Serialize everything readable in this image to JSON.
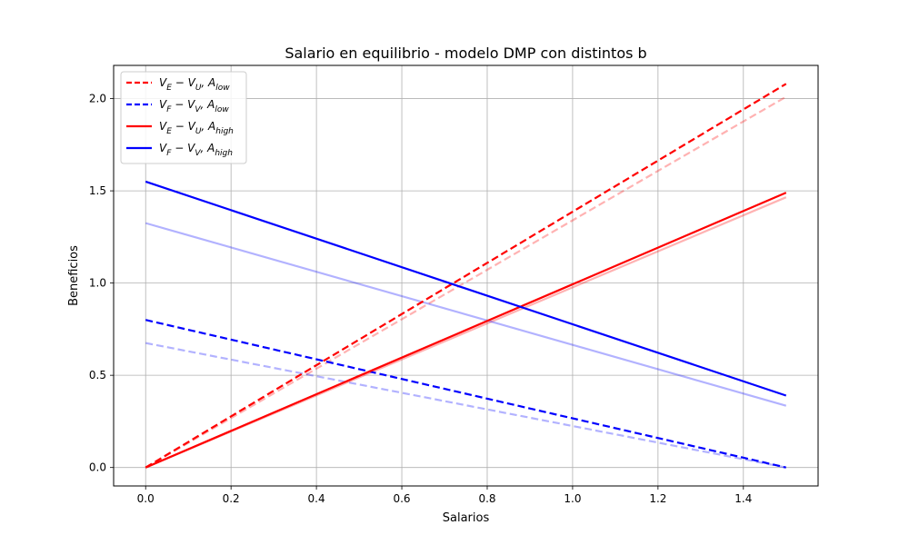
{
  "chart_data": {
    "type": "line",
    "title": "Salario en equilibrio - modelo DMP con distintos b",
    "xlabel": "Salarios",
    "ylabel": "Beneficios",
    "xlim": [
      -0.075,
      1.575
    ],
    "ylim": [
      -0.1,
      2.18
    ],
    "xticks": [
      0.0,
      0.2,
      0.4,
      0.6,
      0.8,
      1.0,
      1.2,
      1.4
    ],
    "yticks": [
      0.0,
      0.5,
      1.0,
      1.5,
      2.0
    ],
    "xtick_labels": [
      "0.0",
      "0.2",
      "0.4",
      "0.6",
      "0.8",
      "1.0",
      "1.2",
      "1.4"
    ],
    "ytick_labels": [
      "0.0",
      "0.5",
      "1.0",
      "1.5",
      "2.0"
    ],
    "grid": true,
    "legend_position": "top-left",
    "series": [
      {
        "name": "V_E − V_U, A_low",
        "legend": true,
        "color": "#ff0000",
        "dash": "dashed",
        "opacity": 1.0,
        "x": [
          0.0,
          1.5
        ],
        "y": [
          0.0,
          2.08
        ]
      },
      {
        "name": "V_F − V_V, A_low",
        "legend": true,
        "color": "#0000ff",
        "dash": "dashed",
        "opacity": 1.0,
        "x": [
          0.0,
          1.5
        ],
        "y": [
          0.8,
          0.0
        ]
      },
      {
        "name": "V_E − V_U, A_high",
        "legend": true,
        "color": "#ff0000",
        "dash": "solid",
        "opacity": 1.0,
        "x": [
          0.0,
          1.5
        ],
        "y": [
          0.0,
          1.49
        ]
      },
      {
        "name": "V_F − V_V, A_high",
        "legend": true,
        "color": "#0000ff",
        "dash": "solid",
        "opacity": 1.0,
        "x": [
          0.0,
          1.5
        ],
        "y": [
          1.55,
          0.39
        ]
      },
      {
        "legend": false,
        "color": "#ff0000",
        "dash": "dashed",
        "opacity": 0.3,
        "x": [
          0.0,
          1.5
        ],
        "y": [
          0.0,
          2.01
        ]
      },
      {
        "legend": false,
        "color": "#0000ff",
        "dash": "dashed",
        "opacity": 0.3,
        "x": [
          0.0,
          1.5
        ],
        "y": [
          0.675,
          0.0
        ]
      },
      {
        "legend": false,
        "color": "#ff0000",
        "dash": "solid",
        "opacity": 0.3,
        "x": [
          0.0,
          1.5
        ],
        "y": [
          0.0,
          1.465
        ]
      },
      {
        "legend": false,
        "color": "#0000ff",
        "dash": "solid",
        "opacity": 0.3,
        "x": [
          0.0,
          1.5
        ],
        "y": [
          1.325,
          0.335
        ]
      }
    ],
    "legend_entries": [
      {
        "base": "V",
        "sub1": "E",
        "mid": " − V",
        "sub2": "U",
        "tail": ", A",
        "sub3": "low",
        "color": "#ff0000",
        "dash": "dashed"
      },
      {
        "base": "V",
        "sub1": "F",
        "mid": " − V",
        "sub2": "V",
        "tail": ", A",
        "sub3": "low",
        "color": "#0000ff",
        "dash": "dashed"
      },
      {
        "base": "V",
        "sub1": "E",
        "mid": " − V",
        "sub2": "U",
        "tail": ", A",
        "sub3": "high",
        "color": "#ff0000",
        "dash": "solid"
      },
      {
        "base": "V",
        "sub1": "F",
        "mid": " − V",
        "sub2": "V",
        "tail": ", A",
        "sub3": "high",
        "color": "#0000ff",
        "dash": "solid"
      }
    ]
  }
}
